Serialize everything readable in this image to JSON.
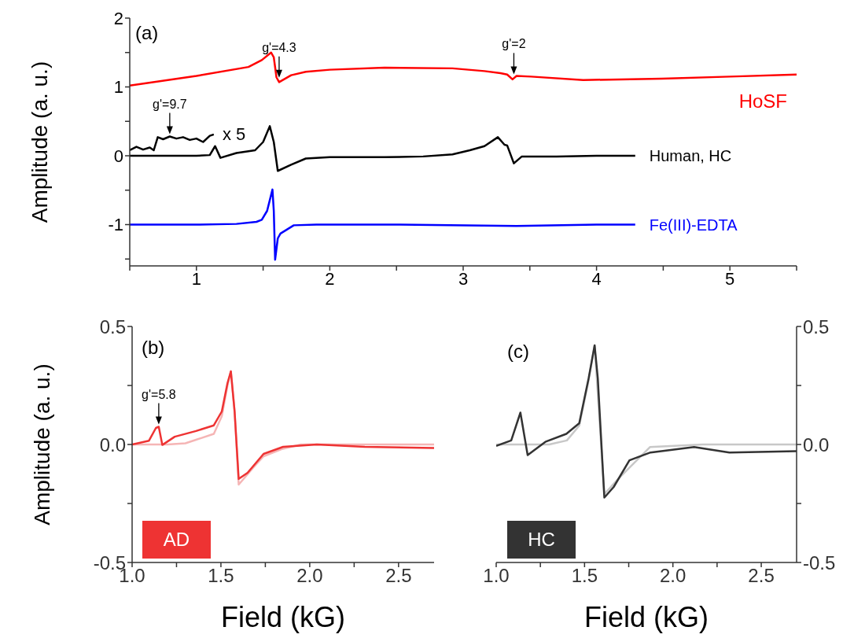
{
  "chart_data": [
    {
      "type": "line",
      "ylabel": "Amplitude (a. u.)",
      "xlim": [
        0.5,
        5.5
      ],
      "ylim": [
        -1.6,
        2
      ],
      "xticks": [
        {
          "value": 0.5,
          "label": null
        },
        1,
        {
          "value": 1.5,
          "label": null
        },
        2,
        {
          "value": 2.5,
          "label": null
        },
        3,
        {
          "value": 3.5,
          "label": null
        },
        4,
        {
          "value": 4.5,
          "label": null
        },
        5,
        {
          "value": 5.5,
          "label": null
        }
      ],
      "yticks": [
        {
          "value": -1.5,
          "label": null
        },
        -1,
        {
          "value": -0.5,
          "label": null
        },
        0,
        {
          "value": 0.5,
          "label": null
        },
        1,
        {
          "value": 1.5,
          "label": null
        },
        2
      ],
      "marker": "none",
      "line_style": "solid",
      "series": [
        {
          "name": "HoSF",
          "color": "#ff0000",
          "x": [
            0.5,
            1.0,
            1.39,
            1.49,
            1.56,
            1.58,
            1.6,
            1.62,
            1.71,
            1.82,
            2.0,
            2.41,
            2.92,
            3.16,
            3.28,
            3.33,
            3.37,
            3.4,
            3.51,
            3.9,
            4.49,
            5.0,
            5.5
          ],
          "values": [
            1.02,
            1.16,
            1.29,
            1.39,
            1.5,
            1.43,
            1.14,
            1.07,
            1.17,
            1.22,
            1.25,
            1.28,
            1.27,
            1.23,
            1.2,
            1.18,
            1.11,
            1.16,
            1.15,
            1.1,
            1.12,
            1.15,
            1.18
          ]
        },
        {
          "name": "Human, HC",
          "color": "#000000",
          "x": [
            0.5,
            1.0,
            1.1,
            1.14,
            1.18,
            1.3,
            1.44,
            1.5,
            1.55,
            1.58,
            1.61,
            1.71,
            1.82,
            2.0,
            2.41,
            2.7,
            2.92,
            3.05,
            3.16,
            3.26,
            3.31,
            3.33,
            3.38,
            3.44,
            3.7,
            4.0,
            4.29
          ],
          "values": [
            0,
            0,
            0.01,
            0.14,
            -0.03,
            0.04,
            0.08,
            0.2,
            0.43,
            0.2,
            -0.22,
            -0.13,
            -0.04,
            -0.02,
            -0.02,
            -0.01,
            0.02,
            0.08,
            0.14,
            0.27,
            0.16,
            0.15,
            -0.11,
            -0.01,
            -0.01,
            0,
            0
          ]
        },
        {
          "color": "#000000",
          "x": [
            0.5,
            0.55,
            0.6,
            0.65,
            0.68,
            0.71,
            0.75,
            0.8,
            0.85,
            0.9,
            0.95,
            1.0,
            1.05,
            1.1,
            1.13
          ],
          "values": [
            0.08,
            0.13,
            0.09,
            0.12,
            0.08,
            0.27,
            0.24,
            0.28,
            0.25,
            0.27,
            0.23,
            0.25,
            0.2,
            0.29,
            0.31
          ]
        },
        {
          "name": "Fe(III)-EDTA",
          "color": "#0000ff",
          "x": [
            0.5,
            1.0,
            1.3,
            1.45,
            1.49,
            1.53,
            1.57,
            1.58,
            1.59,
            1.61,
            1.63,
            1.73,
            1.9,
            2.5,
            3.4,
            4.0,
            4.29
          ],
          "values": [
            -1,
            -1,
            -0.99,
            -0.96,
            -0.93,
            -0.8,
            -0.49,
            -0.8,
            -1.51,
            -1.2,
            -1.13,
            -1.01,
            -1,
            -1,
            -1.02,
            -1,
            -1
          ]
        }
      ],
      "annotations": [
        "(a)",
        "x 5",
        {
          "text": "g'=9.7",
          "x": 0.8,
          "y": 0.28
        },
        {
          "text": "g'=4.3",
          "x": 1.62,
          "y": 1.1
        },
        {
          "text": "g'=2",
          "x": 3.38,
          "y": 1.15
        }
      ]
    },
    {
      "type": "line",
      "xlabel": "Field (kG)",
      "ylabel": "Amplitude (a. u.)",
      "xlim": [
        1.0,
        2.7
      ],
      "ylim": [
        -0.5,
        0.5
      ],
      "xticks": [
        {
          "value": 1.0,
          "label": "1.0"
        },
        {
          "value": 1.25,
          "label": null
        },
        {
          "value": 1.5,
          "label": "1.5"
        },
        {
          "value": 1.75,
          "label": null
        },
        {
          "value": 2.0,
          "label": "2.0"
        },
        {
          "value": 2.25,
          "label": null
        },
        {
          "value": 2.5,
          "label": "2.5"
        }
      ],
      "yticks": [
        -0.5,
        {
          "value": -0.25,
          "label": null
        },
        {
          "value": 0,
          "label": "0.0"
        },
        {
          "value": 0.25,
          "label": null
        },
        0.5
      ],
      "marker": "none",
      "line_style": "solid",
      "series": [
        {
          "color": "#f5b5b5",
          "x": [
            1.0,
            1.2,
            1.3,
            1.36,
            1.46,
            1.505,
            1.537,
            1.556,
            1.577,
            1.6,
            1.68,
            1.74,
            1.84,
            1.95,
            2.7
          ],
          "values": [
            0,
            0,
            0.005,
            0.02,
            0.045,
            0.12,
            0.25,
            0.31,
            0.14,
            -0.17,
            -0.1,
            -0.05,
            -0.02,
            0,
            0
          ]
        },
        {
          "color": "#ee3333",
          "x": [
            1.0,
            1.095,
            1.134,
            1.15,
            1.17,
            1.24,
            1.36,
            1.46,
            1.505,
            1.537,
            1.556,
            1.577,
            1.6,
            1.65,
            1.74,
            1.85,
            2.04,
            2.31,
            2.7
          ],
          "values": [
            0,
            0.016,
            0.07,
            0.075,
            -0.002,
            0.033,
            0.057,
            0.081,
            0.14,
            0.26,
            0.31,
            0.14,
            -0.146,
            -0.12,
            -0.04,
            -0.01,
            0,
            -0.01,
            -0.015
          ]
        }
      ],
      "annotations": [
        "(b)",
        "AD",
        {
          "text": "g'=5.8",
          "x": 1.15,
          "y": 0.075
        }
      ]
    },
    {
      "type": "line",
      "xlabel": "Field (kG)",
      "xlim": [
        1.0,
        2.7
      ],
      "ylim": [
        -0.5,
        0.5
      ],
      "xticks": [
        {
          "value": 1.0,
          "label": "1.0"
        },
        {
          "value": 1.25,
          "label": null
        },
        {
          "value": 1.5,
          "label": "1.5"
        },
        {
          "value": 1.75,
          "label": null
        },
        {
          "value": 2.0,
          "label": "2.0"
        },
        {
          "value": 2.25,
          "label": null
        },
        {
          "value": 2.5,
          "label": "2.5"
        }
      ],
      "yticks": [
        -0.5,
        {
          "value": -0.25,
          "label": null
        },
        {
          "value": 0,
          "label": "0.0"
        },
        {
          "value": 0.25,
          "label": null
        },
        0.5
      ],
      "marker": "none",
      "line_style": "solid",
      "series": [
        {
          "color": "#c8c8c8",
          "x": [
            1.0,
            1.3,
            1.4,
            1.47,
            1.52,
            1.557,
            1.612,
            1.69,
            1.87,
            2.17,
            2.7
          ],
          "values": [
            0,
            0,
            0.017,
            0.08,
            0.26,
            0.42,
            -0.21,
            -0.146,
            -0.011,
            0,
            0
          ]
        },
        {
          "color": "#333333",
          "x": [
            1.0,
            1.085,
            1.137,
            1.178,
            1.278,
            1.397,
            1.47,
            1.523,
            1.557,
            1.575,
            1.612,
            1.665,
            1.754,
            1.873,
            2.12,
            2.32,
            2.7
          ],
          "values": [
            -0.006,
            0.017,
            0.135,
            -0.045,
            0.011,
            0.045,
            0.09,
            0.28,
            0.42,
            0.28,
            -0.225,
            -0.18,
            -0.067,
            -0.034,
            -0.011,
            -0.034,
            -0.028
          ]
        }
      ],
      "annotations": [
        "(c)",
        "HC"
      ]
    }
  ]
}
